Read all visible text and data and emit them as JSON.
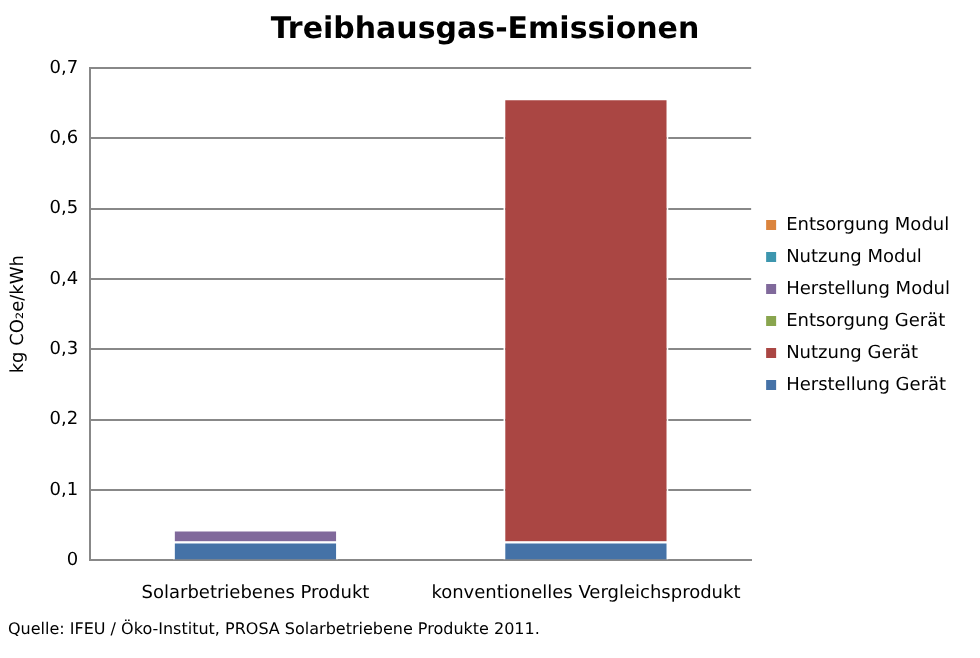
{
  "chart_data": {
    "type": "bar",
    "title": "Treibhausgas-Emissionen",
    "ylabel": "kg CO₂e/kWh",
    "categories": [
      "Solarbetriebenes Produkt",
      "konventionelles Vergleichsprodukt"
    ],
    "stacked": true,
    "series": [
      {
        "name": "Herstellung Gerät",
        "color": "#4572a7",
        "values": [
          0.027,
          0.027
        ]
      },
      {
        "name": "Nutzung Gerät",
        "color": "#aa4643",
        "values": [
          0,
          0.63
        ]
      },
      {
        "name": "Entsorgung Gerät",
        "color": "#89a54e",
        "values": [
          0,
          0
        ]
      },
      {
        "name": "Herstellung Modul",
        "color": "#80699b",
        "values": [
          0.017,
          0
        ]
      },
      {
        "name": "Nutzung Modul",
        "color": "#3d96ae",
        "values": [
          0,
          0
        ]
      },
      {
        "name": "Entsorgung Modul",
        "color": "#db843d",
        "values": [
          0,
          0
        ]
      }
    ],
    "ylim": [
      0,
      0.7
    ],
    "yticks": [
      0,
      {
        "value": 0.1,
        "label": "0,1"
      },
      {
        "value": 0.2,
        "label": "0,2"
      },
      {
        "value": 0.3,
        "label": "0,3"
      },
      {
        "value": 0.4,
        "label": "0,4"
      },
      {
        "value": 0.5,
        "label": "0,5"
      },
      {
        "value": 0.6,
        "label": "0,6"
      },
      {
        "value": 0.7,
        "label": "0,7"
      }
    ],
    "grid": "y",
    "legend": "right",
    "annotations": [
      "Quelle: IFEU / Öko-Institut, PROSA Solarbetriebene Produkte 2011."
    ]
  }
}
